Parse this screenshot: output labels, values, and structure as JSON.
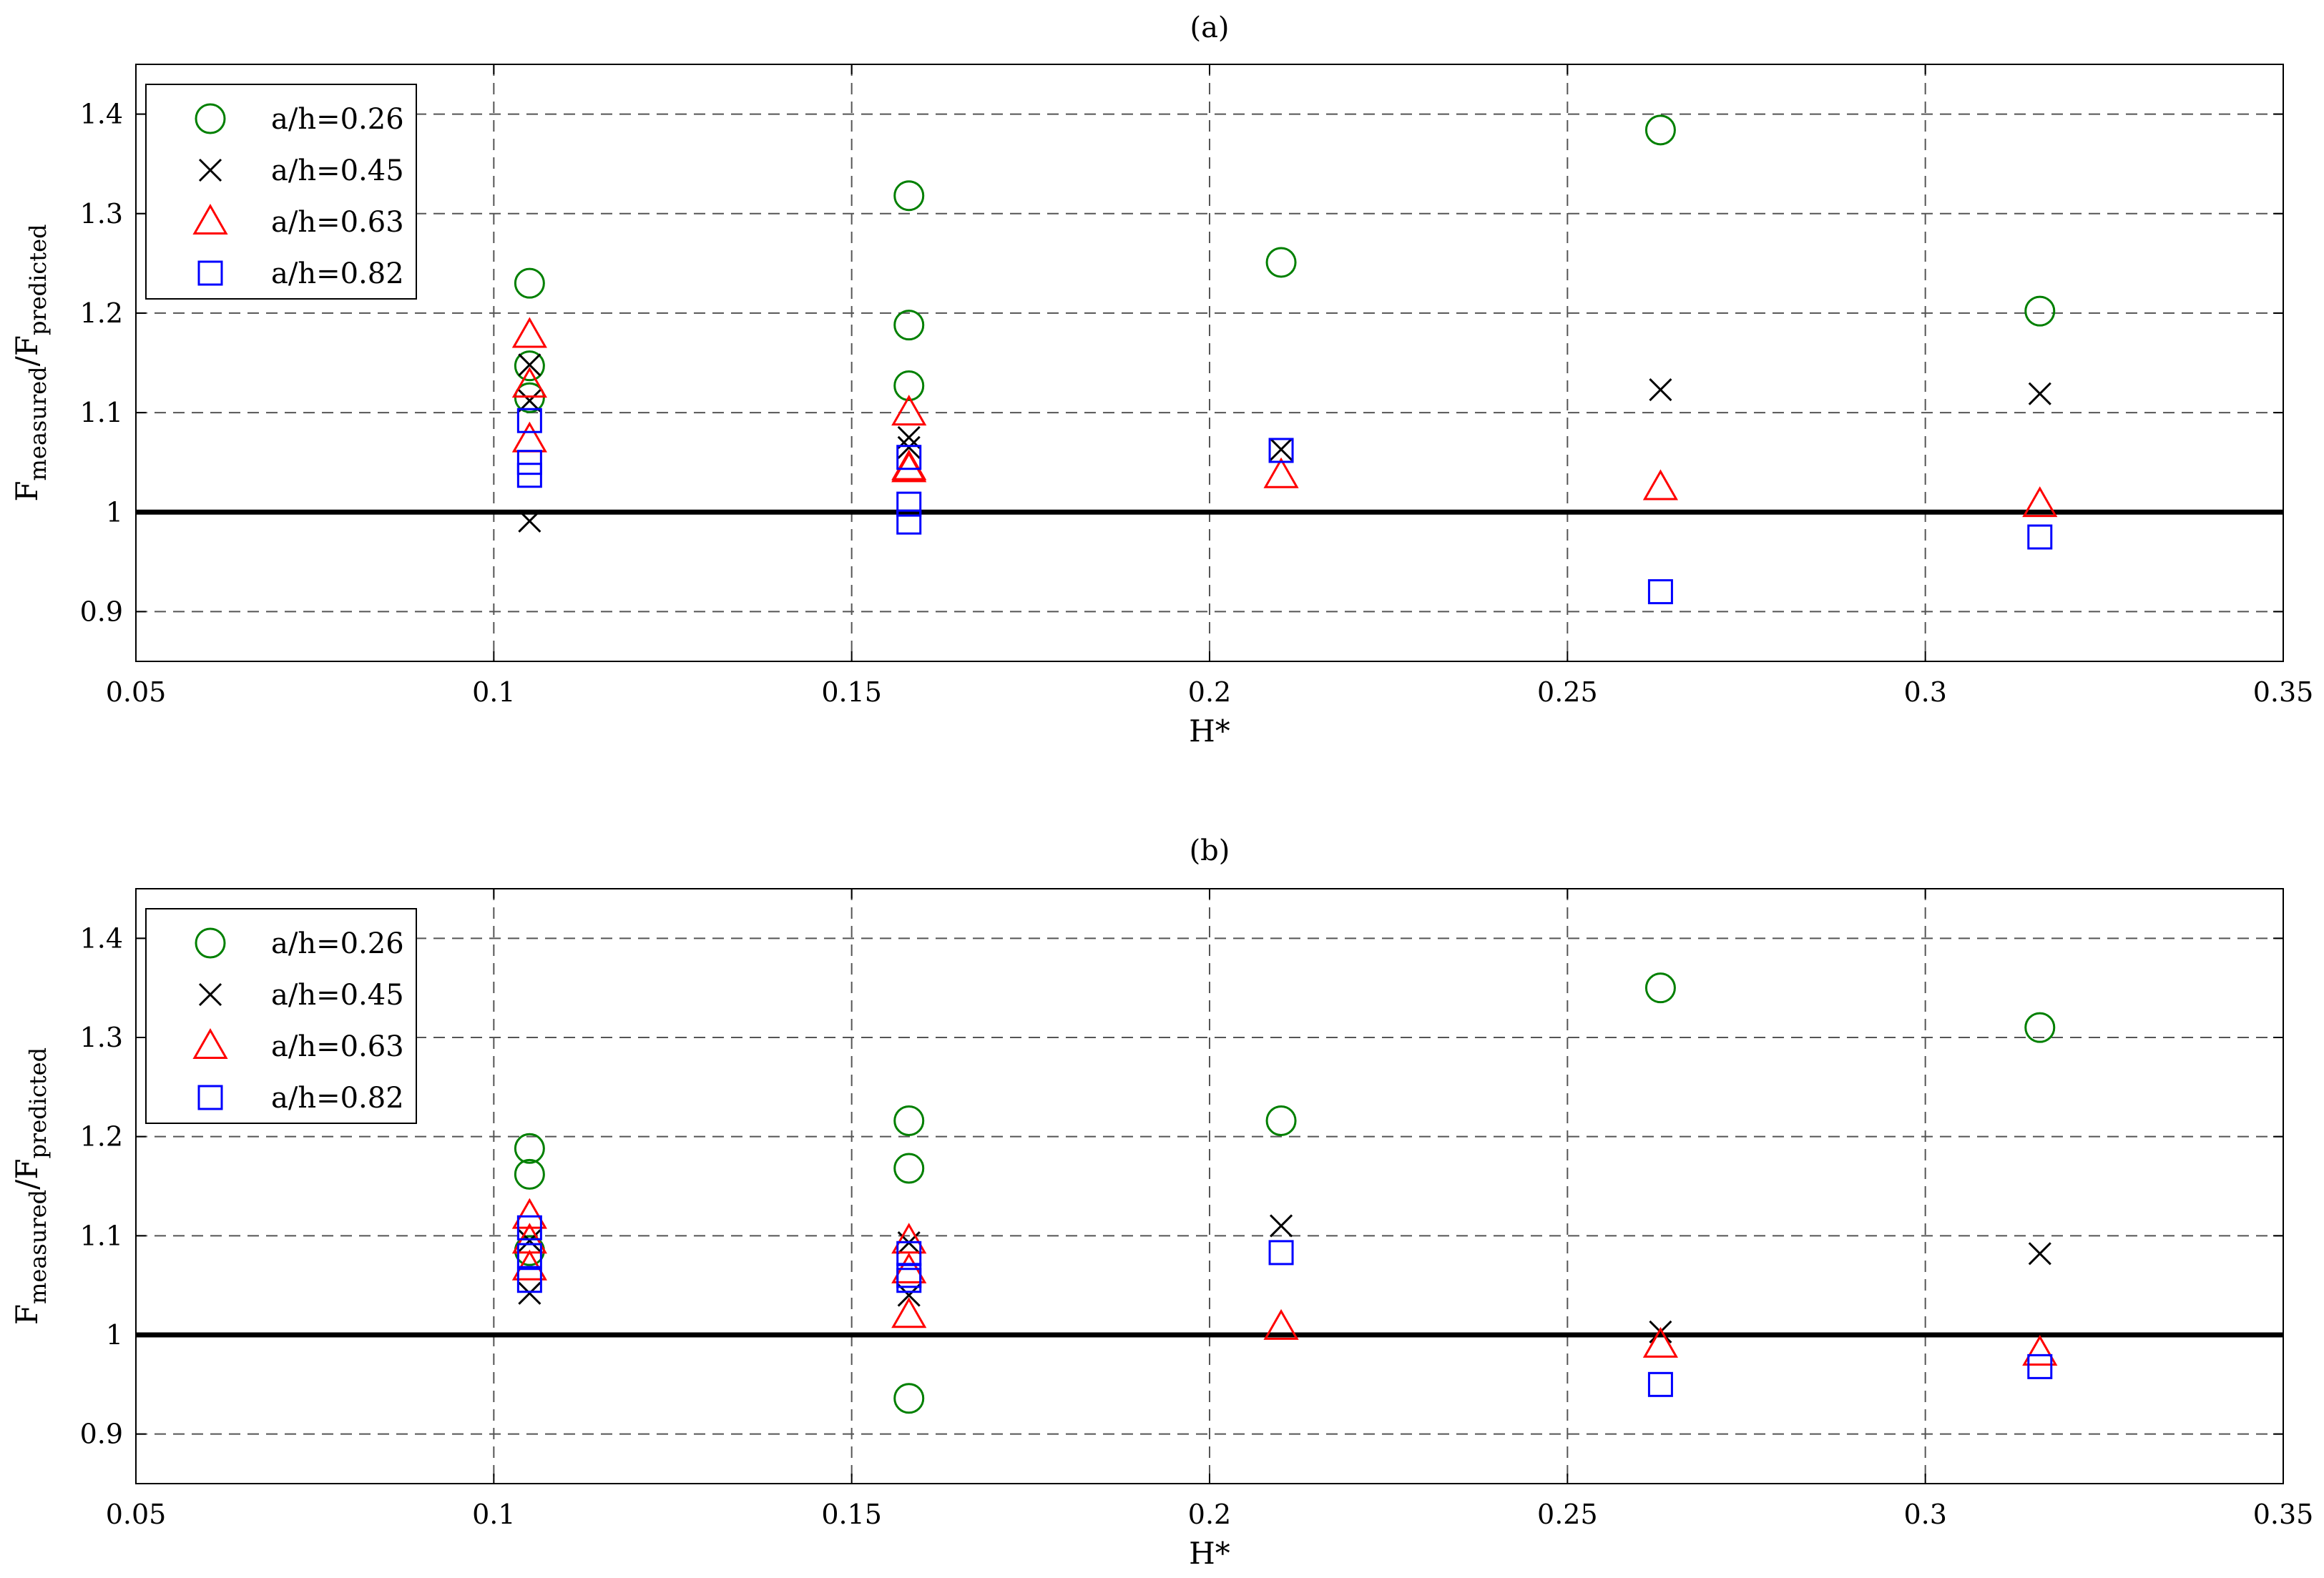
{
  "chart_data": [
    {
      "type": "scatter",
      "title": "(a)",
      "xlabel": "H*",
      "ylabel_main": "F",
      "ylabel_sub1": "measured",
      "ylabel_sep": "/F",
      "ylabel_sub2": "predicted",
      "xlim": [
        0.05,
        0.35
      ],
      "ylim": [
        0.85,
        1.45
      ],
      "xticks": [
        0.05,
        0.1,
        0.15,
        0.2,
        0.25,
        0.3,
        0.35
      ],
      "xtick_labels": [
        "0.05",
        "0.1",
        "0.15",
        "0.2",
        "0.25",
        "0.3",
        "0.35"
      ],
      "yticks": [
        0.9,
        1.0,
        1.1,
        1.2,
        1.3,
        1.4
      ],
      "ytick_labels": [
        "0.9",
        "1",
        "1.1",
        "1.2",
        "1.3",
        "1.4"
      ],
      "grid": "dashed",
      "reference_line_y": 1.0,
      "legend_position": "top-left",
      "series": [
        {
          "name": "a/h=0.26",
          "marker": "circle",
          "color": "#008000",
          "x": [
            0.105,
            0.105,
            0.105,
            0.158,
            0.158,
            0.158,
            0.21,
            0.263,
            0.316
          ],
          "y": [
            1.23,
            1.147,
            1.115,
            1.318,
            1.188,
            1.127,
            1.251,
            1.384,
            1.202
          ]
        },
        {
          "name": "a/h=0.45",
          "marker": "x",
          "color": "#000000",
          "x": [
            0.105,
            0.105,
            0.105,
            0.158,
            0.158,
            0.21,
            0.263,
            0.316
          ],
          "y": [
            1.148,
            1.112,
            0.991,
            1.075,
            1.065,
            1.063,
            1.123,
            1.119
          ]
        },
        {
          "name": "a/h=0.63",
          "marker": "triangle",
          "color": "#ff0000",
          "x": [
            0.105,
            0.105,
            0.105,
            0.158,
            0.158,
            0.158,
            0.21,
            0.263,
            0.316
          ],
          "y": [
            1.178,
            1.128,
            1.073,
            1.1,
            1.045,
            1.043,
            1.037,
            1.025,
            1.008
          ]
        },
        {
          "name": "a/h=0.82",
          "marker": "square",
          "color": "#0000ff",
          "x": [
            0.105,
            0.105,
            0.105,
            0.158,
            0.158,
            0.158,
            0.21,
            0.263,
            0.316
          ],
          "y": [
            1.092,
            1.05,
            1.037,
            1.055,
            1.008,
            0.99,
            1.062,
            0.92,
            0.975
          ]
        }
      ]
    },
    {
      "type": "scatter",
      "title": "(b)",
      "xlabel": "H*",
      "ylabel_main": "F",
      "ylabel_sub1": "measured",
      "ylabel_sep": "/F",
      "ylabel_sub2": "predicted",
      "xlim": [
        0.05,
        0.35
      ],
      "ylim": [
        0.85,
        1.45
      ],
      "xticks": [
        0.05,
        0.1,
        0.15,
        0.2,
        0.25,
        0.3,
        0.35
      ],
      "xtick_labels": [
        "0.05",
        "0.1",
        "0.15",
        "0.2",
        "0.25",
        "0.3",
        "0.35"
      ],
      "yticks": [
        0.9,
        1.0,
        1.1,
        1.2,
        1.3,
        1.4
      ],
      "ytick_labels": [
        "0.9",
        "1",
        "1.1",
        "1.2",
        "1.3",
        "1.4"
      ],
      "grid": "dashed",
      "reference_line_y": 1.0,
      "legend_position": "top-left",
      "series": [
        {
          "name": "a/h=0.26",
          "marker": "circle",
          "color": "#008000",
          "x": [
            0.105,
            0.105,
            0.105,
            0.158,
            0.158,
            0.158,
            0.21,
            0.263,
            0.316
          ],
          "y": [
            1.188,
            1.162,
            1.085,
            1.216,
            1.168,
            0.936,
            1.216,
            1.35,
            1.31
          ]
        },
        {
          "name": "a/h=0.45",
          "marker": "x",
          "color": "#000000",
          "x": [
            0.105,
            0.105,
            0.158,
            0.158,
            0.21,
            0.263,
            0.316
          ],
          "y": [
            1.095,
            1.042,
            1.093,
            1.04,
            1.11,
            1.003,
            1.082
          ]
        },
        {
          "name": "a/h=0.63",
          "marker": "triangle",
          "color": "#ff0000",
          "x": [
            0.105,
            0.105,
            0.105,
            0.158,
            0.158,
            0.158,
            0.21,
            0.263,
            0.316
          ],
          "y": [
            1.12,
            1.095,
            1.068,
            1.095,
            1.065,
            1.02,
            1.008,
            0.99,
            0.982
          ]
        },
        {
          "name": "a/h=0.82",
          "marker": "square",
          "color": "#0000ff",
          "x": [
            0.105,
            0.105,
            0.105,
            0.158,
            0.158,
            0.158,
            0.21,
            0.263,
            0.316
          ],
          "y": [
            1.108,
            1.08,
            1.055,
            1.082,
            1.06,
            1.055,
            1.083,
            0.95,
            0.968
          ]
        }
      ]
    }
  ]
}
